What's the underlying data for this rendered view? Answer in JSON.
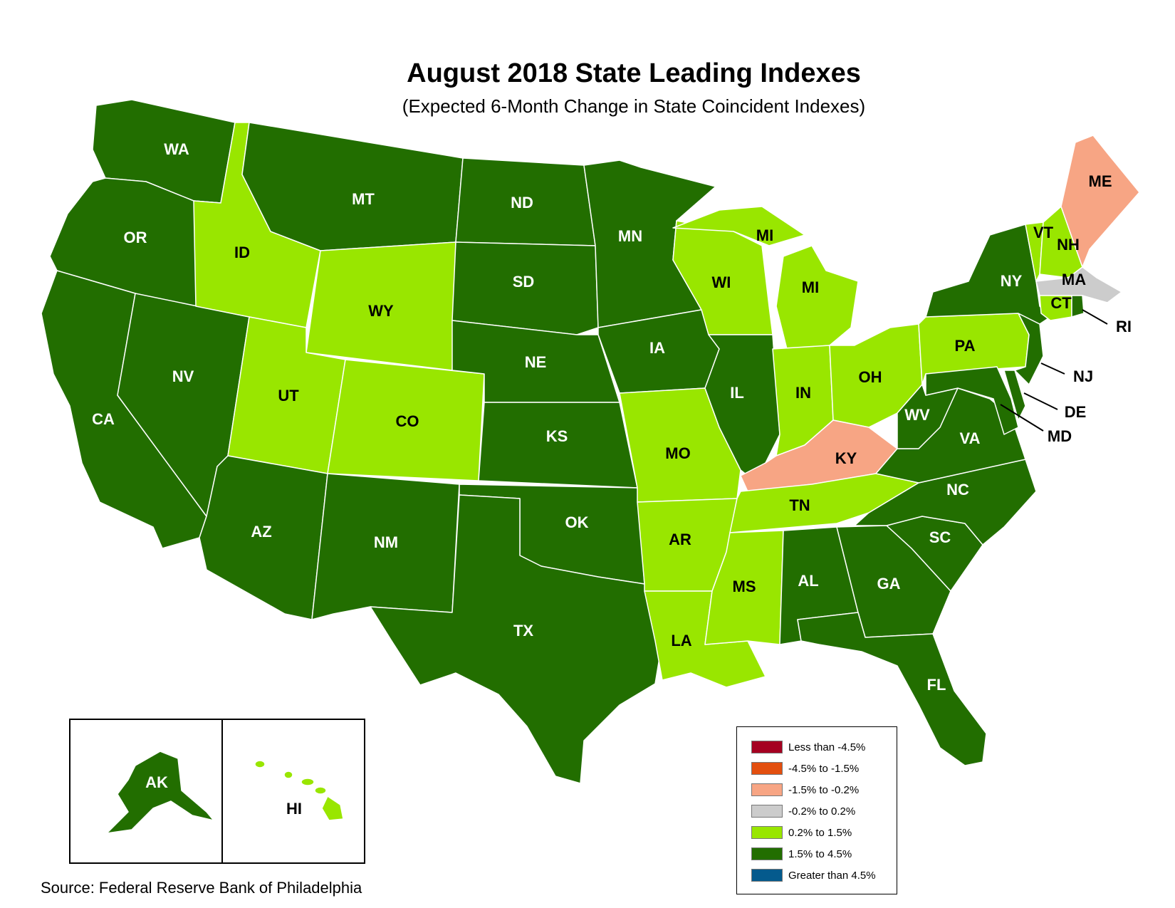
{
  "title": "August 2018 State Leading Indexes",
  "subtitle": "(Expected 6-Month Change in State Coincident Indexes)",
  "source": "Source: Federal Reserve Bank of Philadelphia",
  "colors": {
    "less_than_-4.5": "#a50021",
    "-4.5_to_-1.5": "#e34f0f",
    "-1.5_to_-0.2": "#f7a584",
    "-0.2_to_0.2": "#cccccc",
    "0.2_to_1.5": "#99e600",
    "1.5_to_4.5": "#226e00",
    "greater_than_4.5": "#045a8d"
  },
  "legend": [
    {
      "label": "Less than -4.5%",
      "color": "#a50021"
    },
    {
      "label": "-4.5% to -1.5%",
      "color": "#e34f0f"
    },
    {
      "label": "-1.5% to -0.2%",
      "color": "#f7a584"
    },
    {
      "label": "-0.2% to 0.2%",
      "color": "#cccccc"
    },
    {
      "label": "0.2% to 1.5%",
      "color": "#99e600"
    },
    {
      "label": "1.5% to 4.5%",
      "color": "#226e00"
    },
    {
      "label": "Greater than 4.5%",
      "color": "#045a8d"
    }
  ],
  "states": {
    "WA": "1.5% to 4.5%",
    "OR": "1.5% to 4.5%",
    "CA": "1.5% to 4.5%",
    "NV": "1.5% to 4.5%",
    "ID": "0.2% to 1.5%",
    "MT": "1.5% to 4.5%",
    "WY": "0.2% to 1.5%",
    "UT": "0.2% to 1.5%",
    "CO": "0.2% to 1.5%",
    "AZ": "1.5% to 4.5%",
    "NM": "1.5% to 4.5%",
    "ND": "1.5% to 4.5%",
    "SD": "1.5% to 4.5%",
    "NE": "1.5% to 4.5%",
    "KS": "1.5% to 4.5%",
    "OK": "1.5% to 4.5%",
    "TX": "1.5% to 4.5%",
    "MN": "1.5% to 4.5%",
    "IA": "1.5% to 4.5%",
    "MO": "0.2% to 1.5%",
    "AR": "0.2% to 1.5%",
    "LA": "0.2% to 1.5%",
    "WI": "0.2% to 1.5%",
    "IL": "1.5% to 4.5%",
    "MI": "0.2% to 1.5%",
    "IN": "0.2% to 1.5%",
    "OH": "0.2% to 1.5%",
    "KY": "-1.5% to -0.2%",
    "TN": "0.2% to 1.5%",
    "MS": "0.2% to 1.5%",
    "AL": "1.5% to 4.5%",
    "GA": "1.5% to 4.5%",
    "FL": "1.5% to 4.5%",
    "SC": "1.5% to 4.5%",
    "NC": "1.5% to 4.5%",
    "VA": "1.5% to 4.5%",
    "WV": "1.5% to 4.5%",
    "MD": "1.5% to 4.5%",
    "DE": "1.5% to 4.5%",
    "NJ": "1.5% to 4.5%",
    "PA": "0.2% to 1.5%",
    "NY": "1.5% to 4.5%",
    "CT": "0.2% to 1.5%",
    "RI": "1.5% to 4.5%",
    "MA": "-0.2% to 0.2%",
    "VT": "0.2% to 1.5%",
    "NH": "0.2% to 1.5%",
    "ME": "-1.5% to -0.2%",
    "AK": "1.5% to 4.5%",
    "HI": "0.2% to 1.5%"
  }
}
